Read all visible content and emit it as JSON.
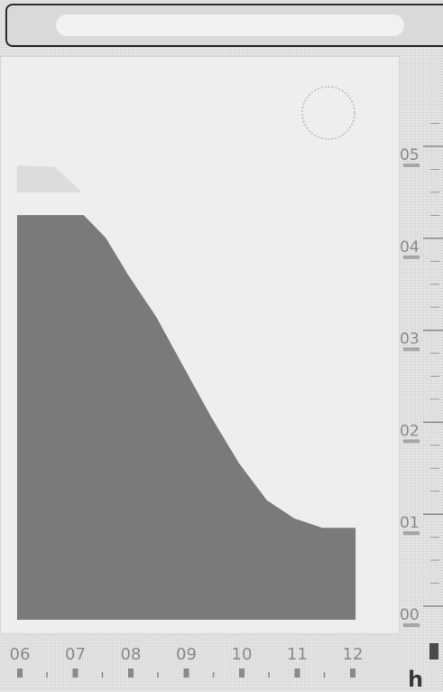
{
  "search": {
    "value": ""
  },
  "axis_unit": "h",
  "chart_data": {
    "type": "area",
    "title": "",
    "xlabel": "",
    "ylabel": "",
    "x": [
      "06",
      "07",
      "08",
      "09",
      "10",
      "11",
      "12"
    ],
    "y_ticks": [
      "00",
      "01",
      "02",
      "03",
      "04",
      "05"
    ],
    "ylim": [
      0,
      5.5
    ],
    "series": [
      {
        "x": [
          6.0,
          6.8,
          7.2,
          7.6,
          8.0,
          8.5,
          9.0,
          9.5,
          10.0,
          10.5,
          11.0,
          11.5,
          12.0,
          12.1
        ],
        "values": [
          4.4,
          4.4,
          4.4,
          4.15,
          3.75,
          3.3,
          2.75,
          2.2,
          1.7,
          1.3,
          1.1,
          1.0,
          1.0,
          1.0
        ]
      }
    ],
    "grid": false,
    "legend": "none",
    "colors": {
      "fill": "#7a7a7a",
      "background": "#eeeeee"
    }
  }
}
